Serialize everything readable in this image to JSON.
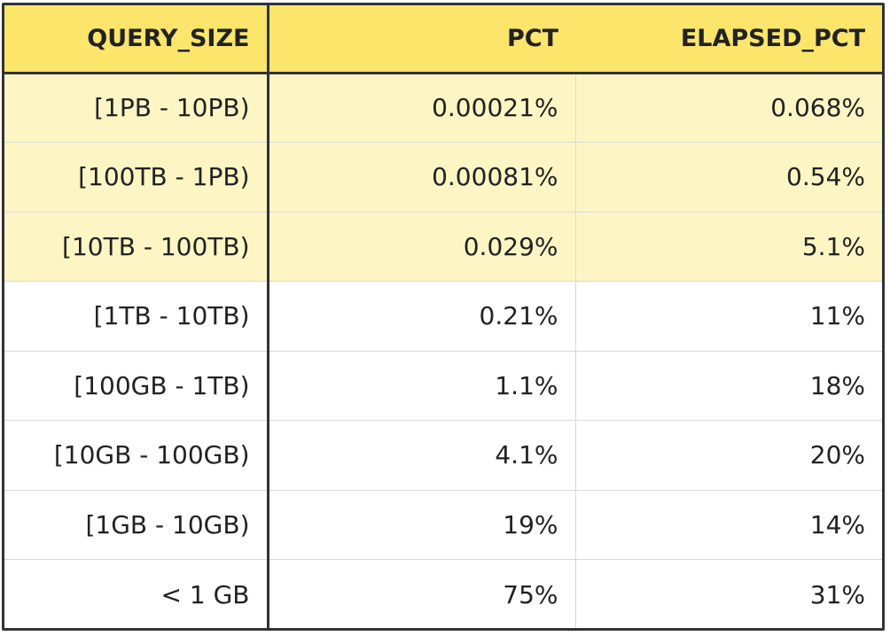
{
  "table": {
    "headers": [
      "QUERY_SIZE",
      "PCT",
      "ELAPSED_PCT"
    ],
    "highlight_color": "#fdf6c4",
    "header_color": "#fbe56b",
    "rows": [
      {
        "query_size": "[1PB - 10PB)",
        "pct": "0.00021%",
        "elapsed_pct": "0.068%",
        "highlight": true
      },
      {
        "query_size": "[100TB - 1PB)",
        "pct": "0.00081%",
        "elapsed_pct": "0.54%",
        "highlight": true
      },
      {
        "query_size": "[10TB - 100TB)",
        "pct": "0.029%",
        "elapsed_pct": "5.1%",
        "highlight": true
      },
      {
        "query_size": "[1TB - 10TB)",
        "pct": "0.21%",
        "elapsed_pct": "11%",
        "highlight": false
      },
      {
        "query_size": "[100GB - 1TB)",
        "pct": "1.1%",
        "elapsed_pct": "18%",
        "highlight": false
      },
      {
        "query_size": "[10GB - 100GB)",
        "pct": "4.1%",
        "elapsed_pct": "20%",
        "highlight": false
      },
      {
        "query_size": "[1GB - 10GB)",
        "pct": "19%",
        "elapsed_pct": "14%",
        "highlight": false
      },
      {
        "query_size": "< 1 GB",
        "pct": "75%",
        "elapsed_pct": "31%",
        "highlight": false
      }
    ]
  }
}
